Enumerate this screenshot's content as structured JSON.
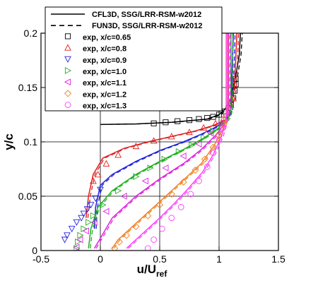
{
  "chart_data": {
    "type": "line",
    "xlabel": "u/U",
    "xlabel_sub": "ref",
    "ylabel": "y/c",
    "xlim": [
      -0.5,
      1.5
    ],
    "ylim": [
      0,
      0.2
    ],
    "xticks": [
      "-0.5",
      "0",
      "0.5",
      "1",
      "1.5"
    ],
    "yticks": [
      "0",
      "0.05",
      "0.1",
      "0.15",
      "0.2"
    ],
    "grid": true,
    "legend_position": "top-left",
    "legend": [
      {
        "label": "CFL3D, SSG/LRR-RSM-w2012",
        "style": "solid-line",
        "color": "#000000"
      },
      {
        "label": "FUN3D, SSG/LRR-RSM-w2012",
        "style": "dashed-line",
        "color": "#000000"
      },
      {
        "label": "exp, x/c=0.65",
        "style": "square",
        "color": "#000000"
      },
      {
        "label": "exp, x/c=0.8",
        "style": "triangle-up",
        "color": "#e02020"
      },
      {
        "label": "exp, x/c=0.9",
        "style": "triangle-down",
        "color": "#2020e0"
      },
      {
        "label": "exp, x/c=1.0",
        "style": "triangle-right",
        "color": "#20b020"
      },
      {
        "label": "exp, x/c=1.1",
        "style": "triangle-left",
        "color": "#e020e0"
      },
      {
        "label": "exp, x/c=1.2",
        "style": "diamond",
        "color": "#f08020"
      },
      {
        "label": "exp, x/c=1.3",
        "style": "circle",
        "color": "#ff40ff"
      }
    ],
    "series": [
      {
        "name": "exp, x/c=0.65",
        "color": "#000000",
        "marker": "square",
        "cfd": [
          [
            0.0,
            0.116
          ],
          [
            0.3,
            0.1165
          ],
          [
            0.6,
            0.118
          ],
          [
            0.9,
            0.121
          ],
          [
            1.0,
            0.125
          ],
          [
            1.05,
            0.13
          ],
          [
            1.1,
            0.14
          ],
          [
            1.14,
            0.16
          ],
          [
            1.17,
            0.18
          ],
          [
            1.18,
            0.2
          ]
        ],
        "exp": [
          [
            0.45,
            0.117
          ],
          [
            0.55,
            0.118
          ],
          [
            0.65,
            0.119
          ],
          [
            0.75,
            0.12
          ],
          [
            0.83,
            0.121
          ],
          [
            0.9,
            0.122
          ],
          [
            0.95,
            0.123
          ],
          [
            1.0,
            0.125
          ],
          [
            1.05,
            0.128
          ],
          [
            1.08,
            0.131
          ],
          [
            1.1,
            0.135
          ],
          [
            1.12,
            0.14
          ],
          [
            1.13,
            0.147
          ],
          [
            1.14,
            0.153
          ],
          [
            1.14,
            0.158
          ]
        ]
      },
      {
        "name": "exp, x/c=0.8",
        "color": "#e02020",
        "marker": "triangle-up",
        "cfd": [
          [
            -0.12,
            0.03
          ],
          [
            -0.1,
            0.05
          ],
          [
            -0.06,
            0.07
          ],
          [
            0.02,
            0.085
          ],
          [
            0.2,
            0.094
          ],
          [
            0.4,
            0.1
          ],
          [
            0.6,
            0.105
          ],
          [
            0.8,
            0.11
          ],
          [
            0.95,
            0.115
          ],
          [
            1.05,
            0.12
          ],
          [
            1.1,
            0.13
          ],
          [
            1.13,
            0.15
          ],
          [
            1.15,
            0.2
          ]
        ],
        "exp": [
          [
            -0.06,
            0.064
          ],
          [
            -0.02,
            0.07
          ],
          [
            0.05,
            0.08
          ],
          [
            0.15,
            0.088
          ],
          [
            0.3,
            0.096
          ],
          [
            0.45,
            0.101
          ],
          [
            0.6,
            0.105
          ],
          [
            0.75,
            0.109
          ],
          [
            0.87,
            0.113
          ],
          [
            0.97,
            0.117
          ],
          [
            1.04,
            0.122
          ],
          [
            1.08,
            0.128
          ],
          [
            1.1,
            0.134
          ],
          [
            1.12,
            0.14
          ]
        ]
      },
      {
        "name": "exp, x/c=0.9",
        "color": "#2020e0",
        "marker": "triangle-down",
        "cfd": [
          [
            -0.05,
            0.02
          ],
          [
            -0.04,
            0.04
          ],
          [
            0.0,
            0.06
          ],
          [
            0.1,
            0.07
          ],
          [
            0.3,
            0.082
          ],
          [
            0.5,
            0.092
          ],
          [
            0.7,
            0.1
          ],
          [
            0.85,
            0.107
          ],
          [
            0.98,
            0.114
          ],
          [
            1.06,
            0.12
          ],
          [
            1.1,
            0.13
          ],
          [
            1.12,
            0.2
          ]
        ],
        "exp": [
          [
            -0.3,
            0.01
          ],
          [
            -0.28,
            0.014
          ],
          [
            -0.24,
            0.02
          ],
          [
            -0.2,
            0.026
          ],
          [
            -0.16,
            0.03
          ],
          [
            -0.14,
            0.034
          ],
          [
            -0.11,
            0.038
          ],
          [
            -0.08,
            0.042
          ],
          [
            -0.04,
            0.048
          ],
          [
            0.0,
            0.056
          ]
        ]
      },
      {
        "name": "exp, x/c=1.0",
        "color": "#20b020",
        "marker": "triangle-right",
        "cfd": [
          [
            -0.1,
            0.002
          ],
          [
            -0.08,
            0.02
          ],
          [
            -0.02,
            0.04
          ],
          [
            0.1,
            0.055
          ],
          [
            0.3,
            0.07
          ],
          [
            0.5,
            0.082
          ],
          [
            0.7,
            0.093
          ],
          [
            0.88,
            0.104
          ],
          [
            1.0,
            0.113
          ],
          [
            1.08,
            0.122
          ],
          [
            1.1,
            0.13
          ],
          [
            1.1,
            0.2
          ]
        ],
        "exp": [
          [
            -0.2,
            0.002
          ],
          [
            -0.19,
            0.008
          ],
          [
            -0.17,
            0.014
          ],
          [
            -0.14,
            0.02
          ],
          [
            -0.1,
            0.026
          ],
          [
            -0.06,
            0.032
          ],
          [
            0.02,
            0.042
          ],
          [
            0.15,
            0.055
          ],
          [
            0.3,
            0.068
          ],
          [
            0.42,
            0.076
          ],
          [
            0.54,
            0.084
          ],
          [
            0.66,
            0.091
          ],
          [
            0.77,
            0.097
          ],
          [
            0.87,
            0.104
          ],
          [
            0.95,
            0.11
          ],
          [
            1.02,
            0.116
          ],
          [
            1.06,
            0.12
          ]
        ]
      },
      {
        "name": "exp, x/c=1.1",
        "color": "#e020e0",
        "marker": "triangle-left",
        "cfd": [
          [
            -0.05,
            0.002
          ],
          [
            0.02,
            0.015
          ],
          [
            0.1,
            0.03
          ],
          [
            0.3,
            0.05
          ],
          [
            0.5,
            0.066
          ],
          [
            0.7,
            0.08
          ],
          [
            0.85,
            0.093
          ],
          [
            0.97,
            0.106
          ],
          [
            1.05,
            0.117
          ],
          [
            1.08,
            0.13
          ],
          [
            1.08,
            0.2
          ]
        ],
        "exp": [
          [
            -0.2,
            0.003
          ],
          [
            -0.17,
            0.01
          ],
          [
            -0.12,
            0.018
          ],
          [
            -0.05,
            0.026
          ],
          [
            0.05,
            0.036
          ],
          [
            0.2,
            0.05
          ],
          [
            0.38,
            0.064
          ],
          [
            0.55,
            0.076
          ],
          [
            0.7,
            0.087
          ],
          [
            0.83,
            0.098
          ],
          [
            0.93,
            0.108
          ],
          [
            1.01,
            0.117
          ]
        ]
      },
      {
        "name": "exp, x/c=1.2",
        "color": "#f08020",
        "marker": "diamond",
        "cfd": [
          [
            0.1,
            0.002
          ],
          [
            0.15,
            0.01
          ],
          [
            0.25,
            0.02
          ],
          [
            0.4,
            0.035
          ],
          [
            0.55,
            0.05
          ],
          [
            0.7,
            0.065
          ],
          [
            0.85,
            0.08
          ],
          [
            0.96,
            0.097
          ],
          [
            1.04,
            0.113
          ],
          [
            1.07,
            0.13
          ],
          [
            1.07,
            0.2
          ]
        ],
        "exp": [
          [
            0.12,
            0.002
          ],
          [
            0.16,
            0.008
          ],
          [
            0.22,
            0.014
          ],
          [
            0.3,
            0.022
          ],
          [
            0.4,
            0.032
          ],
          [
            0.5,
            0.042
          ],
          [
            0.6,
            0.052
          ],
          [
            0.7,
            0.063
          ],
          [
            0.8,
            0.074
          ],
          [
            0.88,
            0.084
          ],
          [
            0.95,
            0.095
          ],
          [
            1.0,
            0.106
          ],
          [
            1.04,
            0.116
          ]
        ]
      },
      {
        "name": "exp, x/c=1.3",
        "color": "#ff40ff",
        "marker": "circle",
        "cfd": [
          [
            0.22,
            0.002
          ],
          [
            0.28,
            0.008
          ],
          [
            0.38,
            0.018
          ],
          [
            0.5,
            0.03
          ],
          [
            0.62,
            0.043
          ],
          [
            0.74,
            0.057
          ],
          [
            0.86,
            0.072
          ],
          [
            0.95,
            0.088
          ],
          [
            1.02,
            0.105
          ],
          [
            1.06,
            0.12
          ],
          [
            1.06,
            0.2
          ]
        ],
        "exp": [
          [
            0.4,
            0.002
          ],
          [
            0.45,
            0.01
          ],
          [
            0.52,
            0.02
          ],
          [
            0.6,
            0.03
          ],
          [
            0.68,
            0.04
          ],
          [
            0.76,
            0.052
          ],
          [
            0.83,
            0.064
          ],
          [
            0.9,
            0.077
          ],
          [
            0.95,
            0.09
          ],
          [
            1.0,
            0.102
          ],
          [
            1.03,
            0.113
          ]
        ]
      }
    ]
  }
}
